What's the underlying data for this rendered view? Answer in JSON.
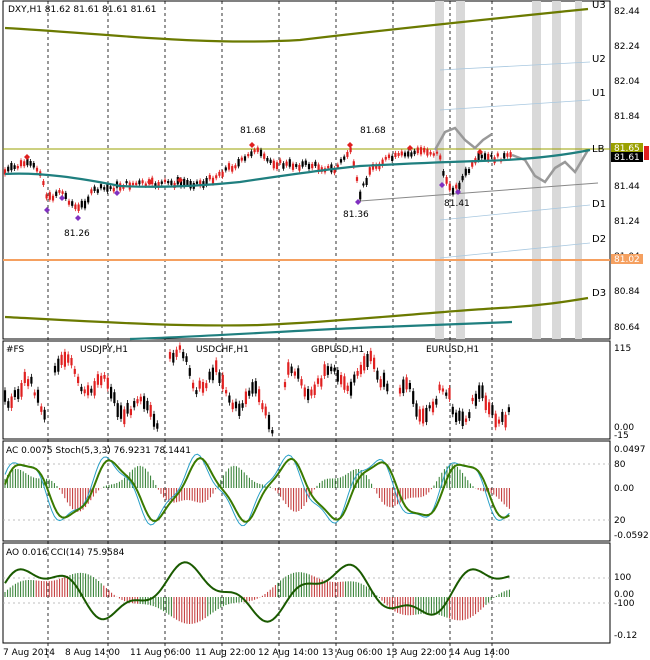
{
  "main": {
    "title": "DXY,H1  81.62 81.61 81.61 81.61",
    "price_ticks": [
      "82.44",
      "82.24",
      "82.04",
      "81.84",
      "81.44",
      "81.24",
      "81.04",
      "80.84",
      "80.64"
    ],
    "level_labels": [
      "U3",
      "U2",
      "U1",
      "LB",
      "D1",
      "D2",
      "D3"
    ],
    "price_tags": {
      "a": "81.65",
      "b": "81.61",
      "c": "81.02"
    },
    "peak_labels": [
      "81.68",
      "81.68",
      "81.26",
      "81.36",
      "81.41"
    ]
  },
  "pairs": {
    "labels": [
      "#FS",
      "USDJPY,H1",
      "USDCHF,H1",
      "GBPUSD,H1",
      "EURUSD,H1"
    ],
    "axis": [
      "115",
      "0.00",
      "-15"
    ]
  },
  "ac": {
    "title": "AC 0.0075  Stoch(5,3,3) 76.9231 78.1441",
    "axis": [
      "0.0497",
      "80",
      "0.00",
      "20",
      "-0.0592"
    ]
  },
  "ao": {
    "title": "AO 0.016  CCI(14) 75.9584",
    "axis": [
      "100",
      "0.00",
      "-100",
      "-0.12"
    ]
  },
  "time_labels": [
    "7 Aug 2014",
    "8 Aug 14:00",
    "11 Aug 06:00",
    "11 Aug 22:00",
    "12 Aug 14:00",
    "13 Aug 06:00",
    "13 Aug 22:00",
    "14 Aug 14:00"
  ],
  "colors": {
    "olive": "#6b7a00",
    "teal": "#1f7f7f",
    "orange": "#f5a060",
    "red": "#e02020",
    "purple": "#8030c0",
    "gray": "#999999"
  }
}
